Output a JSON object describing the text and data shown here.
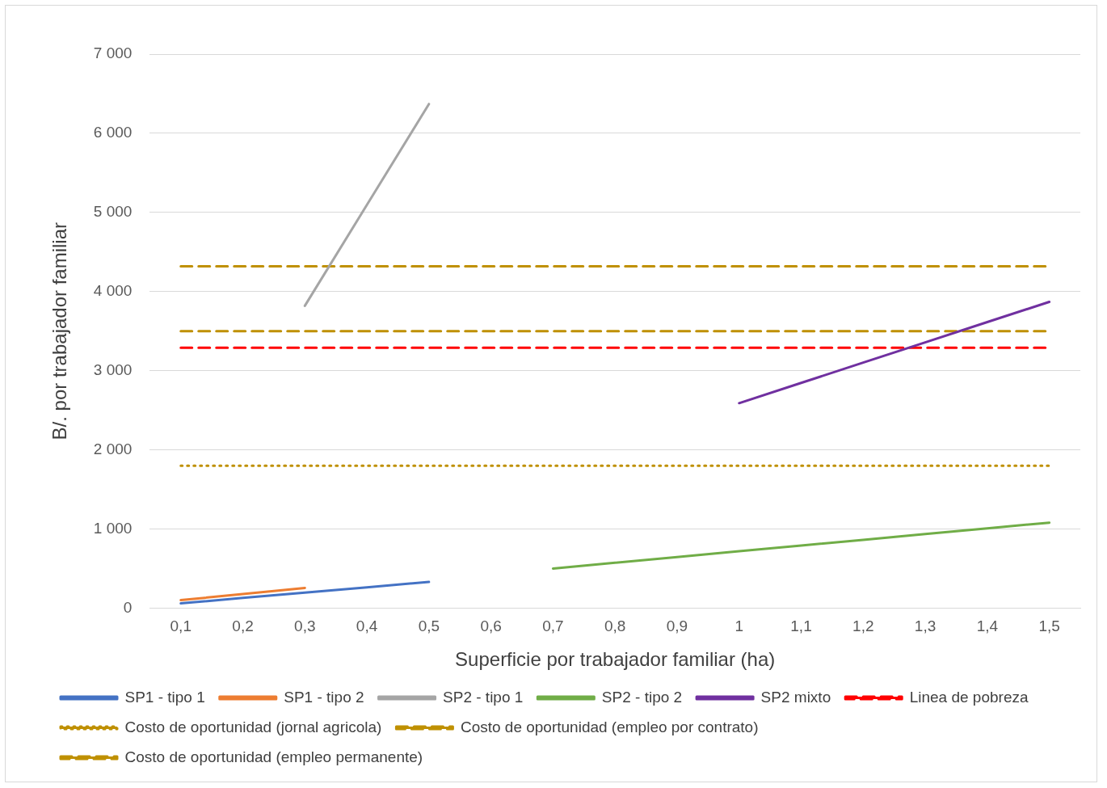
{
  "chart_data": {
    "type": "line",
    "xlabel": "Superficie por trabajador familiar (ha)",
    "ylabel": "B/. por trabajador familiar",
    "categories": [
      "0,1",
      "0,2",
      "0,3",
      "0,4",
      "0,5",
      "0,6",
      "0,7",
      "0,8",
      "0,9",
      "1",
      "1,1",
      "1,2",
      "1,3",
      "1,4",
      "1,5"
    ],
    "ylim": [
      0,
      7000
    ],
    "yticks": [
      0,
      {
        "value": 1000,
        "label": "1 000"
      },
      {
        "value": 2000,
        "label": "2 000"
      },
      {
        "value": 3000,
        "label": "3 000"
      },
      {
        "value": 4000,
        "label": "4 000"
      },
      {
        "value": 5000,
        "label": "5 000"
      },
      {
        "value": 6000,
        "label": "6 000"
      },
      {
        "value": 7000,
        "label": "7 000"
      }
    ],
    "grid": "y",
    "legend": "bottom",
    "marker": "none",
    "series": [
      {
        "name": "SP1 - tipo 1",
        "color": "#4472c4",
        "line_style": "solid",
        "values": [
          60,
          128,
          195,
          263,
          330,
          null,
          null,
          null,
          null,
          null,
          null,
          null,
          null,
          null,
          null
        ]
      },
      {
        "name": "SP1 - tipo 2",
        "color": "#ed7d31",
        "line_style": "solid",
        "values": [
          100,
          178,
          255,
          null,
          null,
          null,
          null,
          null,
          null,
          null,
          null,
          null,
          null,
          null,
          null
        ]
      },
      {
        "name": "SP2 - tipo 1",
        "color": "#a5a5a5",
        "line_style": "solid",
        "values": [
          null,
          null,
          3820,
          5095,
          6370,
          null,
          null,
          null,
          null,
          null,
          null,
          null,
          null,
          null,
          null
        ]
      },
      {
        "name": "SP2 - tipo 2",
        "color": "#70ad47",
        "line_style": "solid",
        "values": [
          null,
          null,
          null,
          null,
          null,
          null,
          500,
          573,
          645,
          718,
          790,
          863,
          935,
          1008,
          1080
        ]
      },
      {
        "name": "SP2 mixto",
        "color": "#7030a0",
        "line_style": "solid",
        "values": [
          null,
          null,
          null,
          null,
          null,
          null,
          null,
          null,
          null,
          2590,
          2846,
          3102,
          3358,
          3614,
          3870
        ]
      },
      {
        "name": "Linea de pobreza",
        "color": "#ff0000",
        "line_style": "dashed",
        "values": [
          3290,
          3290,
          3290,
          3290,
          3290,
          3290,
          3290,
          3290,
          3290,
          3290,
          3290,
          3290,
          3290,
          3290,
          3290
        ]
      },
      {
        "name": "Costo de oportunidad (jornal agricola)",
        "color": "#bf9000",
        "line_style": "dotted",
        "values": [
          1800,
          1800,
          1800,
          1800,
          1800,
          1800,
          1800,
          1800,
          1800,
          1800,
          1800,
          1800,
          1800,
          1800,
          1800
        ]
      },
      {
        "name": "Costo de oportunidad (empleo por contrato)",
        "color": "#bf9000",
        "line_style": "dashed",
        "values": [
          3500,
          3500,
          3500,
          3500,
          3500,
          3500,
          3500,
          3500,
          3500,
          3500,
          3500,
          3500,
          3500,
          3500,
          3500
        ]
      },
      {
        "name": "Costo de oportunidad (empleo permanente)",
        "color": "#bf9000",
        "line_style": "dashed",
        "values": [
          4320,
          4320,
          4320,
          4320,
          4320,
          4320,
          4320,
          4320,
          4320,
          4320,
          4320,
          4320,
          4320,
          4320,
          4320
        ]
      }
    ]
  }
}
